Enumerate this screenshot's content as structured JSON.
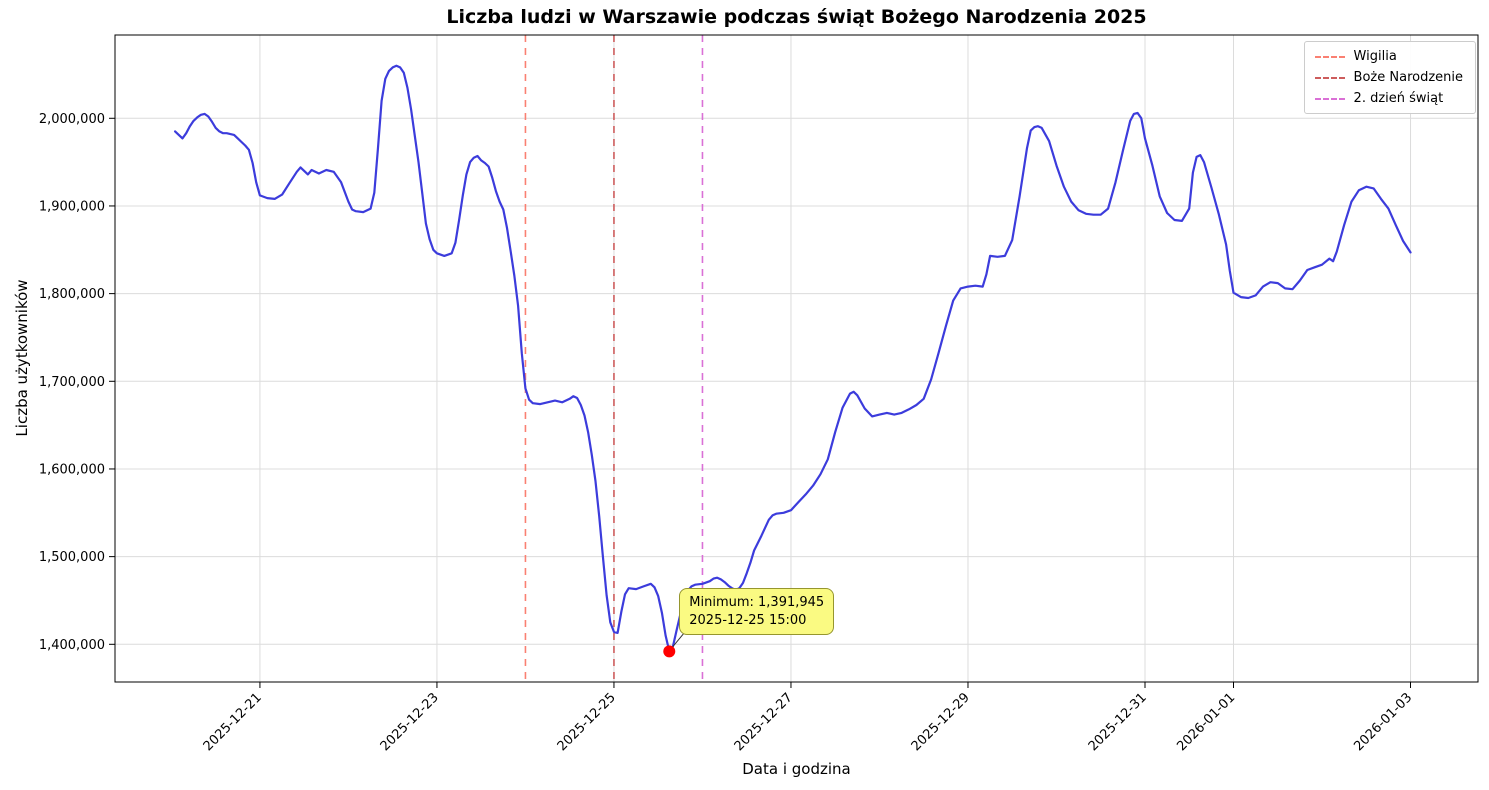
{
  "chart_data": {
    "type": "line",
    "title": "Liczba ludzi w Warszawie podczas świąt Bożego Narodzenia 2025",
    "xlabel": "Data i godzina",
    "ylabel": "Liczba użytkowników",
    "grid": true,
    "legend_position": "upper right",
    "x_unit": "hours since 2025-12-20 00:00",
    "xlim": [
      -15.3,
      354.3
    ],
    "ylim": [
      1357000,
      2095000
    ],
    "line_color": "#3c3cdc",
    "x_ticks": [
      {
        "t": 24,
        "label": "2025-12-21"
      },
      {
        "t": 72,
        "label": "2025-12-23"
      },
      {
        "t": 120,
        "label": "2025-12-25"
      },
      {
        "t": 168,
        "label": "2025-12-27"
      },
      {
        "t": 216,
        "label": "2025-12-29"
      },
      {
        "t": 264,
        "label": "2025-12-31"
      },
      {
        "t": 288,
        "label": "2026-01-01"
      },
      {
        "t": 336,
        "label": "2026-01-03"
      }
    ],
    "y_ticks": [
      {
        "v": 1400000,
        "label": "1,400,000"
      },
      {
        "v": 1500000,
        "label": "1,500,000"
      },
      {
        "v": 1600000,
        "label": "1,600,000"
      },
      {
        "v": 1700000,
        "label": "1,700,000"
      },
      {
        "v": 1800000,
        "label": "1,800,000"
      },
      {
        "v": 1900000,
        "label": "1,900,000"
      },
      {
        "v": 2000000,
        "label": "2,000,000"
      }
    ],
    "vlines": [
      {
        "t": 96,
        "label": "Wigilia",
        "color": "#fa8072"
      },
      {
        "t": 120,
        "label": "Boże Narodzenie",
        "color": "#cd5c5c"
      },
      {
        "t": 144,
        "label": "2. dzień świąt",
        "color": "#da70d6"
      }
    ],
    "minimum": {
      "t": 135,
      "value": 1391945,
      "marker_color": "#ff0000"
    },
    "annotation": {
      "lines": [
        "Minimum: 1,391,945",
        "2025-12-25 15:00"
      ],
      "bg": "#fafa82",
      "border": "#96962e"
    },
    "series": [
      {
        "name": "Liczba użytkowników",
        "points": [
          [
            1,
            1985000
          ],
          [
            2,
            1981000
          ],
          [
            3,
            1977000
          ],
          [
            4,
            1983000
          ],
          [
            5,
            1991000
          ],
          [
            6,
            1997000
          ],
          [
            7,
            2001000
          ],
          [
            8,
            2004000
          ],
          [
            9,
            2005000
          ],
          [
            10,
            2002000
          ],
          [
            11,
            1996000
          ],
          [
            12,
            1989000
          ],
          [
            13,
            1985000
          ],
          [
            14,
            1983000
          ],
          [
            15,
            1983000
          ],
          [
            16,
            1982000
          ],
          [
            17,
            1981000
          ],
          [
            18,
            1977000
          ],
          [
            19,
            1973000
          ],
          [
            20,
            1969000
          ],
          [
            21,
            1964000
          ],
          [
            22,
            1949000
          ],
          [
            23,
            1927000
          ],
          [
            24,
            1912000
          ],
          [
            26,
            1909000
          ],
          [
            28,
            1908000
          ],
          [
            30,
            1913000
          ],
          [
            32,
            1926000
          ],
          [
            34,
            1939000
          ],
          [
            35,
            1944000
          ],
          [
            36,
            1940000
          ],
          [
            37,
            1936000
          ],
          [
            38,
            1941000
          ],
          [
            40,
            1937000
          ],
          [
            42,
            1941000
          ],
          [
            44,
            1939000
          ],
          [
            46,
            1927000
          ],
          [
            48,
            1905000
          ],
          [
            49,
            1896000
          ],
          [
            50,
            1894000
          ],
          [
            52,
            1893000
          ],
          [
            54,
            1897000
          ],
          [
            55,
            1915000
          ],
          [
            56,
            1965000
          ],
          [
            57,
            2020000
          ],
          [
            58,
            2045000
          ],
          [
            59,
            2054000
          ],
          [
            60,
            2058000
          ],
          [
            61,
            2060000
          ],
          [
            62,
            2058000
          ],
          [
            63,
            2052000
          ],
          [
            64,
            2035000
          ],
          [
            65,
            2010000
          ],
          [
            66,
            1980000
          ],
          [
            67,
            1950000
          ],
          [
            68,
            1915000
          ],
          [
            69,
            1880000
          ],
          [
            70,
            1862000
          ],
          [
            71,
            1850000
          ],
          [
            72,
            1846000
          ],
          [
            74,
            1843000
          ],
          [
            76,
            1846000
          ],
          [
            77,
            1858000
          ],
          [
            78,
            1884000
          ],
          [
            79,
            1912000
          ],
          [
            80,
            1936000
          ],
          [
            81,
            1950000
          ],
          [
            82,
            1955000
          ],
          [
            83,
            1957000
          ],
          [
            84,
            1952000
          ],
          [
            85,
            1949000
          ],
          [
            86,
            1945000
          ],
          [
            87,
            1932000
          ],
          [
            88,
            1917000
          ],
          [
            89,
            1905000
          ],
          [
            90,
            1896000
          ],
          [
            91,
            1875000
          ],
          [
            92,
            1848000
          ],
          [
            93,
            1820000
          ],
          [
            94,
            1786000
          ],
          [
            95,
            1732000
          ],
          [
            96,
            1692000
          ],
          [
            97,
            1679000
          ],
          [
            98,
            1675000
          ],
          [
            100,
            1674000
          ],
          [
            102,
            1676000
          ],
          [
            104,
            1678000
          ],
          [
            106,
            1676000
          ],
          [
            108,
            1680000
          ],
          [
            109,
            1683000
          ],
          [
            110,
            1681000
          ],
          [
            111,
            1673000
          ],
          [
            112,
            1661000
          ],
          [
            113,
            1642000
          ],
          [
            114,
            1616000
          ],
          [
            115,
            1586000
          ],
          [
            116,
            1546000
          ],
          [
            117,
            1500000
          ],
          [
            118,
            1456000
          ],
          [
            119,
            1425000
          ],
          [
            120,
            1414000
          ],
          [
            121,
            1413000
          ],
          [
            122,
            1437000
          ],
          [
            123,
            1457000
          ],
          [
            124,
            1464000
          ],
          [
            126,
            1463000
          ],
          [
            128,
            1466000
          ],
          [
            130,
            1469000
          ],
          [
            131,
            1465000
          ],
          [
            132,
            1455000
          ],
          [
            133,
            1436000
          ],
          [
            134,
            1410000
          ],
          [
            135,
            1391945
          ],
          [
            136,
            1398000
          ],
          [
            137,
            1416000
          ],
          [
            138,
            1434000
          ],
          [
            139,
            1450000
          ],
          [
            140,
            1461000
          ],
          [
            141,
            1466000
          ],
          [
            142,
            1468000
          ],
          [
            144,
            1469000
          ],
          [
            146,
            1472000
          ],
          [
            147,
            1475000
          ],
          [
            148,
            1476000
          ],
          [
            149,
            1474000
          ],
          [
            150,
            1471000
          ],
          [
            151,
            1467000
          ],
          [
            152,
            1464000
          ],
          [
            153,
            1462000
          ],
          [
            154,
            1464000
          ],
          [
            155,
            1470000
          ],
          [
            156,
            1481000
          ],
          [
            157,
            1493000
          ],
          [
            158,
            1507000
          ],
          [
            160,
            1524000
          ],
          [
            162,
            1542000
          ],
          [
            163,
            1547000
          ],
          [
            164,
            1549000
          ],
          [
            166,
            1550000
          ],
          [
            168,
            1553000
          ],
          [
            170,
            1562000
          ],
          [
            172,
            1571000
          ],
          [
            174,
            1581000
          ],
          [
            176,
            1594000
          ],
          [
            178,
            1611000
          ],
          [
            180,
            1642000
          ],
          [
            182,
            1670000
          ],
          [
            184,
            1686000
          ],
          [
            185,
            1688000
          ],
          [
            186,
            1684000
          ],
          [
            188,
            1669000
          ],
          [
            190,
            1660000
          ],
          [
            192,
            1662000
          ],
          [
            194,
            1664000
          ],
          [
            196,
            1662000
          ],
          [
            198,
            1664000
          ],
          [
            200,
            1668000
          ],
          [
            202,
            1673000
          ],
          [
            204,
            1680000
          ],
          [
            206,
            1702000
          ],
          [
            208,
            1732000
          ],
          [
            210,
            1763000
          ],
          [
            212,
            1792000
          ],
          [
            214,
            1806000
          ],
          [
            216,
            1808000
          ],
          [
            218,
            1809000
          ],
          [
            220,
            1808000
          ],
          [
            221,
            1822000
          ],
          [
            222,
            1843000
          ],
          [
            224,
            1842000
          ],
          [
            226,
            1843000
          ],
          [
            228,
            1861000
          ],
          [
            230,
            1911000
          ],
          [
            232,
            1966000
          ],
          [
            233,
            1986000
          ],
          [
            234,
            1990000
          ],
          [
            235,
            1991000
          ],
          [
            236,
            1989000
          ],
          [
            238,
            1974000
          ],
          [
            240,
            1946000
          ],
          [
            242,
            1922000
          ],
          [
            244,
            1905000
          ],
          [
            246,
            1895000
          ],
          [
            248,
            1891000
          ],
          [
            250,
            1890000
          ],
          [
            252,
            1890000
          ],
          [
            254,
            1897000
          ],
          [
            256,
            1927000
          ],
          [
            258,
            1963000
          ],
          [
            260,
            1997000
          ],
          [
            261,
            2005000
          ],
          [
            262,
            2006000
          ],
          [
            263,
            2000000
          ],
          [
            264,
            1977000
          ],
          [
            266,
            1946000
          ],
          [
            268,
            1911000
          ],
          [
            270,
            1892000
          ],
          [
            272,
            1884000
          ],
          [
            274,
            1883000
          ],
          [
            276,
            1897000
          ],
          [
            277,
            1938000
          ],
          [
            278,
            1956000
          ],
          [
            279,
            1958000
          ],
          [
            280,
            1950000
          ],
          [
            282,
            1921000
          ],
          [
            284,
            1891000
          ],
          [
            286,
            1856000
          ],
          [
            287,
            1826000
          ],
          [
            288,
            1801000
          ],
          [
            290,
            1796000
          ],
          [
            292,
            1795000
          ],
          [
            294,
            1798000
          ],
          [
            296,
            1808000
          ],
          [
            298,
            1813000
          ],
          [
            300,
            1812000
          ],
          [
            302,
            1806000
          ],
          [
            304,
            1805000
          ],
          [
            306,
            1815000
          ],
          [
            308,
            1827000
          ],
          [
            310,
            1830000
          ],
          [
            312,
            1833000
          ],
          [
            314,
            1840000
          ],
          [
            315,
            1837000
          ],
          [
            316,
            1848000
          ],
          [
            318,
            1878000
          ],
          [
            320,
            1905000
          ],
          [
            322,
            1918000
          ],
          [
            324,
            1922000
          ],
          [
            326,
            1920000
          ],
          [
            328,
            1908000
          ],
          [
            330,
            1897000
          ],
          [
            332,
            1878000
          ],
          [
            334,
            1860000
          ],
          [
            336,
            1847000
          ]
        ]
      }
    ]
  }
}
